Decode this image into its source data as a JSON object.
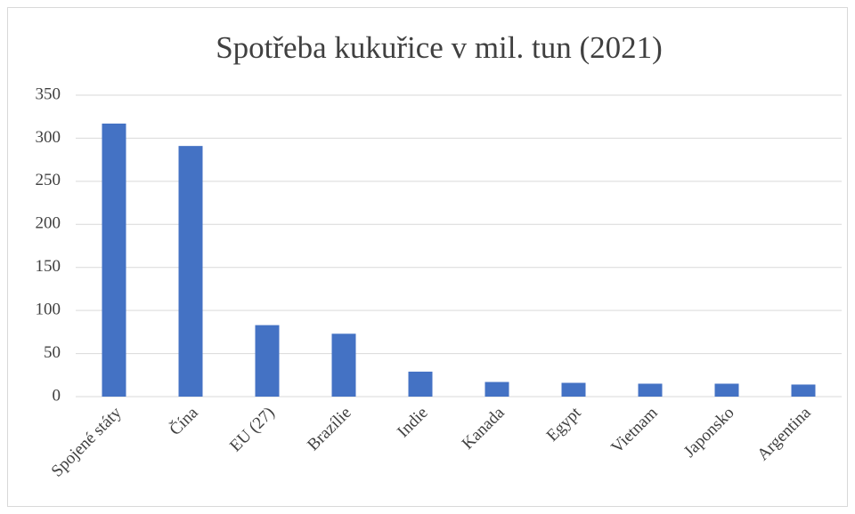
{
  "chart_data": {
    "type": "bar",
    "title": "Spotřeba kukuřice v mil. tun  (2021)",
    "categories": [
      "Spojené státy",
      "Čína",
      "EU (27)",
      "Brazílie",
      "Indie",
      "Kanada",
      "Egypt",
      "Vietnam",
      "Japonsko",
      "Argentina"
    ],
    "values": [
      317,
      291,
      83,
      73,
      29,
      17,
      16,
      15,
      15,
      14
    ],
    "color": "#4472c4",
    "ylim": [
      0,
      350
    ],
    "yticks": [
      0,
      50,
      100,
      150,
      200,
      250,
      300,
      350
    ],
    "grid": true
  }
}
